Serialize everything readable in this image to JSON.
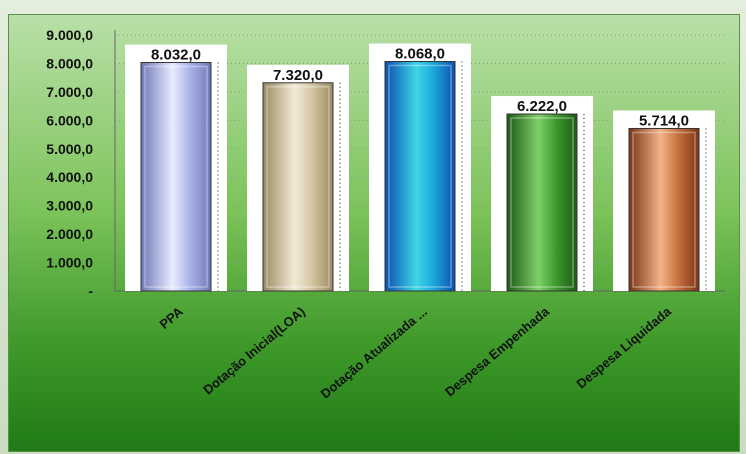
{
  "chart_data": {
    "type": "bar",
    "categories": [
      "PPA",
      "Dotação Inicial(LOA)",
      "Dotação Atualizada ...",
      "Despesa Empenhada",
      "Despesa Liquidada"
    ],
    "values": [
      8032.0,
      7320.0,
      8068.0,
      6222.0,
      5714.0
    ],
    "data_labels": [
      "8.032,0",
      "7.320,0",
      "8.068,0",
      "6.222,0",
      "5.714,0"
    ],
    "y_ticks": [
      "-",
      "1.000,0",
      "2.000,0",
      "3.000,0",
      "4.000,0",
      "5.000,0",
      "6.000,0",
      "7.000,0",
      "8.000,0",
      "9.000,0"
    ],
    "ylim": [
      0,
      9000
    ],
    "grid": true,
    "legend": "none",
    "bar_colors": [
      [
        "#e8ecff",
        "#a9b3e8",
        "#6e78b8"
      ],
      [
        "#f2ead6",
        "#d4c6a2",
        "#9a8a62"
      ],
      [
        "#3fd6e6",
        "#1aa6d8",
        "#0b4fb0"
      ],
      [
        "#7fd06a",
        "#3d9a2e",
        "#1c5a14"
      ],
      [
        "#f2b48a",
        "#c8703e",
        "#7a3416"
      ]
    ]
  }
}
